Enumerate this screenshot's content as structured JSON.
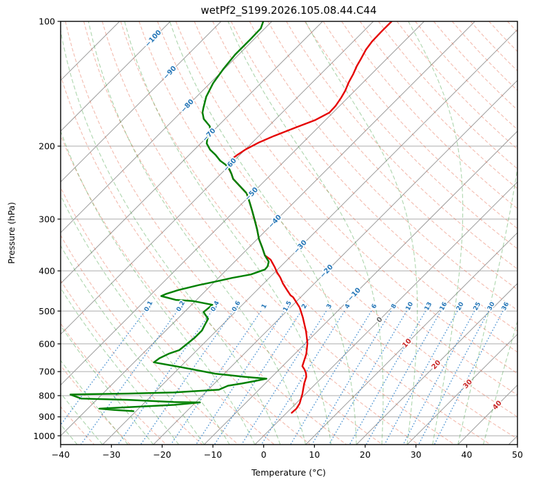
{
  "chart_data": {
    "type": "skewt-log-p",
    "title": "wetPf2_S199.2026.105.08.44.C44",
    "xlabel": "Temperature (°C)",
    "ylabel": "Pressure (hPa)",
    "xlim": [
      -40,
      50
    ],
    "plim": [
      100,
      1050
    ],
    "x_ticks": [
      -40,
      -30,
      -20,
      -10,
      0,
      10,
      20,
      30,
      40,
      50
    ],
    "y_ticks": [
      100,
      200,
      300,
      400,
      500,
      600,
      700,
      800,
      900,
      1000
    ],
    "skew_degrees": 45,
    "isotherms": {
      "start": -110,
      "end": 50,
      "step": 10,
      "labels": [
        {
          "value": -100,
          "p": 110
        },
        {
          "value": -90,
          "p": 133
        },
        {
          "value": -80,
          "p": 160
        },
        {
          "value": -70,
          "p": 188
        },
        {
          "value": -60,
          "p": 222
        },
        {
          "value": -50,
          "p": 261
        },
        {
          "value": -40,
          "p": 304
        },
        {
          "value": -30,
          "p": 350
        },
        {
          "value": -20,
          "p": 401
        },
        {
          "value": -10,
          "p": 456
        },
        {
          "value": 0,
          "p": 525
        },
        {
          "value": 10,
          "p": 598
        },
        {
          "value": 20,
          "p": 674
        },
        {
          "value": 30,
          "p": 750
        },
        {
          "value": 40,
          "p": 844
        }
      ]
    },
    "dry_adiabats": {
      "theta_start": -42,
      "theta_end": 194,
      "step": 7,
      "kappa": 0.2854
    },
    "moist_adiabats": {
      "t_start": -55,
      "t_end": 45,
      "step": 5
    },
    "mixing_ratios": {
      "values": [
        0.1,
        0.2,
        0.4,
        0.6,
        1,
        1.5,
        2,
        3,
        4,
        6,
        8,
        10,
        13,
        16,
        20,
        25,
        30,
        36
      ],
      "p_top": 500,
      "p_bottom": 1050,
      "label_pressure": 487
    },
    "temperature_profile": [
      [
        100,
        -56.4
      ],
      [
        106,
        -56.4
      ],
      [
        112,
        -56.3
      ],
      [
        117,
        -55.9
      ],
      [
        123,
        -55.1
      ],
      [
        128,
        -54.5
      ],
      [
        134,
        -53.6
      ],
      [
        140,
        -52.9
      ],
      [
        147,
        -51.9
      ],
      [
        153,
        -51.3
      ],
      [
        160,
        -50.8
      ],
      [
        166,
        -50.7
      ],
      [
        173,
        -52.0
      ],
      [
        180,
        -54.3
      ],
      [
        189,
        -57.0
      ],
      [
        196,
        -58.7
      ],
      [
        204,
        -60.0
      ],
      [
        210,
        -60.5
      ],
      [
        217,
        -60.9
      ],
      [
        224,
        -60.2
      ],
      [
        227,
        -59.4
      ],
      [
        233,
        -58.0
      ],
      [
        240,
        -56.6
      ],
      [
        260,
        -51.1
      ],
      [
        273,
        -48.8
      ],
      [
        287,
        -46.5
      ],
      [
        302,
        -44.2
      ],
      [
        318,
        -41.9
      ],
      [
        335,
        -39.7
      ],
      [
        351,
        -37.4
      ],
      [
        367,
        -35.3
      ],
      [
        376,
        -33.3
      ],
      [
        392,
        -31.0
      ],
      [
        403,
        -29.6
      ],
      [
        415,
        -27.9
      ],
      [
        429,
        -26.2
      ],
      [
        445,
        -24.1
      ],
      [
        458,
        -22.4
      ],
      [
        463,
        -21.5
      ],
      [
        490,
        -18.2
      ],
      [
        518,
        -15.6
      ],
      [
        560,
        -12.2
      ],
      [
        598,
        -9.6
      ],
      [
        635,
        -7.7
      ],
      [
        679,
        -6.1
      ],
      [
        692,
        -5.0
      ],
      [
        706,
        -4.0
      ],
      [
        721,
        -3.2
      ],
      [
        748,
        -2.3
      ],
      [
        793,
        -0.6
      ],
      [
        835,
        0.7
      ],
      [
        860,
        1.1
      ],
      [
        880,
        1.0
      ]
    ],
    "dewpoint_profile": [
      [
        100,
        -81.7
      ],
      [
        104,
        -80.8
      ],
      [
        111,
        -80.7
      ],
      [
        120,
        -80.7
      ],
      [
        130,
        -80.2
      ],
      [
        141,
        -79.4
      ],
      [
        152,
        -78.1
      ],
      [
        162,
        -76.4
      ],
      [
        166,
        -75.7
      ],
      [
        172,
        -74.2
      ],
      [
        179,
        -71.6
      ],
      [
        184,
        -70.5
      ],
      [
        192,
        -69.6
      ],
      [
        197,
        -68.8
      ],
      [
        204,
        -66.9
      ],
      [
        210,
        -64.8
      ],
      [
        217,
        -62.7
      ],
      [
        222,
        -60.8
      ],
      [
        228,
        -59.1
      ],
      [
        233,
        -58.0
      ],
      [
        240,
        -56.6
      ],
      [
        260,
        -51.1
      ],
      [
        273,
        -48.8
      ],
      [
        287,
        -46.5
      ],
      [
        302,
        -44.2
      ],
      [
        318,
        -41.9
      ],
      [
        335,
        -39.7
      ],
      [
        351,
        -37.4
      ],
      [
        367,
        -35.3
      ],
      [
        380,
        -33.3
      ],
      [
        390,
        -32.6
      ],
      [
        397,
        -32.5
      ],
      [
        408,
        -34.3
      ],
      [
        416,
        -37.3
      ],
      [
        425,
        -40.0
      ],
      [
        433,
        -42.5
      ],
      [
        445,
        -45.5
      ],
      [
        455,
        -47.2
      ],
      [
        460,
        -47.7
      ],
      [
        470,
        -44.1
      ],
      [
        473,
        -40.4
      ],
      [
        483,
        -35.9
      ],
      [
        503,
        -36.2
      ],
      [
        522,
        -34.0
      ],
      [
        541,
        -33.4
      ],
      [
        557,
        -32.9
      ],
      [
        580,
        -32.9
      ],
      [
        600,
        -33.2
      ],
      [
        621,
        -33.5
      ],
      [
        633,
        -34.8
      ],
      [
        650,
        -35.8
      ],
      [
        665,
        -36.1
      ],
      [
        683,
        -29.8
      ],
      [
        708,
        -21.8
      ],
      [
        721,
        -15.3
      ],
      [
        728,
        -10.7
      ],
      [
        737,
        -12.4
      ],
      [
        748,
        -14.6
      ],
      [
        757,
        -16.9
      ],
      [
        774,
        -17.9
      ],
      [
        786,
        -26.3
      ],
      [
        791,
        -35.0
      ],
      [
        793,
        -41.6
      ],
      [
        795,
        -46.2
      ],
      [
        813,
        -43.3
      ],
      [
        819,
        -33.8
      ],
      [
        829,
        -24.4
      ],
      [
        831,
        -19.1
      ],
      [
        842,
        -23.7
      ],
      [
        853,
        -32.3
      ],
      [
        860,
        -37.7
      ],
      [
        866,
        -34.5
      ],
      [
        872,
        -30.5
      ]
    ],
    "colors": {
      "temperature": "#e50000",
      "dewpoint": "#008000",
      "isotherm": "#9b9b9b",
      "pressure_grid": "#ababab",
      "dry_adiabat": "#e4674a",
      "moist_adiabat": "#3a9a3a",
      "mixing_ratio": "#3a87cc",
      "label_cold": "#2878b8",
      "label_zero": "#666666",
      "label_warm": "#c92a2a",
      "axis": "#000000"
    }
  }
}
